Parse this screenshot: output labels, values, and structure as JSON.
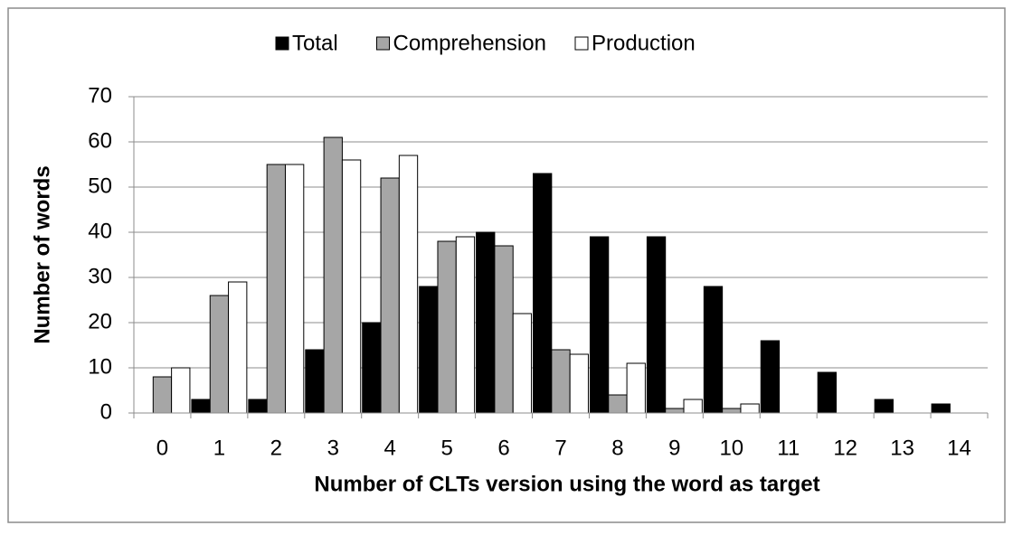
{
  "chart_data": {
    "type": "bar",
    "x_label": "Number of CLTs version using the word as target",
    "y_label": "Number of words",
    "categories": [
      "0",
      "1",
      "2",
      "3",
      "4",
      "5",
      "6",
      "7",
      "8",
      "9",
      "10",
      "11",
      "12",
      "13",
      "14"
    ],
    "series": [
      {
        "name": "Total",
        "color": "#000000",
        "values": [
          0,
          3,
          3,
          14,
          20,
          28,
          40,
          53,
          39,
          39,
          28,
          16,
          9,
          3,
          2
        ]
      },
      {
        "name": "Comprehension",
        "color": "#a6a6a6",
        "values": [
          8,
          26,
          55,
          61,
          52,
          38,
          37,
          14,
          4,
          1,
          1,
          0,
          0,
          0,
          0
        ]
      },
      {
        "name": "Production",
        "color": "#ffffff",
        "values": [
          10,
          29,
          55,
          56,
          57,
          39,
          22,
          13,
          11,
          3,
          2,
          0,
          0,
          0,
          0
        ]
      }
    ],
    "ylim": [
      0,
      70
    ],
    "yticks": [
      0,
      10,
      20,
      30,
      40,
      50,
      60,
      70
    ],
    "grid": true,
    "legend": "top"
  }
}
